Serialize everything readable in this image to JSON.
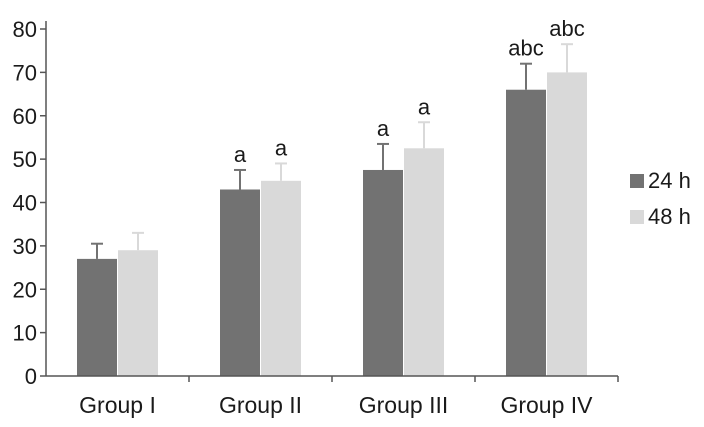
{
  "chart_data": {
    "type": "bar",
    "categories": [
      "Group I",
      "Group II",
      "Group III",
      "Group IV"
    ],
    "series": [
      {
        "name": "24 h",
        "color": "#727272",
        "values": [
          27,
          43,
          47.5,
          66
        ],
        "errors": [
          3.5,
          4.5,
          6,
          6
        ],
        "labels": [
          "",
          "a",
          "a",
          "abc"
        ]
      },
      {
        "name": "48 h",
        "color": "#d9d9d9",
        "values": [
          29,
          45,
          52.5,
          70
        ],
        "errors": [
          4,
          4,
          6,
          6.5
        ],
        "labels": [
          "",
          "a",
          "a",
          "abc"
        ]
      }
    ],
    "yticks": [
      0,
      10,
      20,
      30,
      40,
      50,
      60,
      70,
      80
    ],
    "ylim": [
      0,
      80
    ],
    "title": "",
    "xlabel": "",
    "ylabel": "",
    "grid": false,
    "legend_position": "right"
  }
}
